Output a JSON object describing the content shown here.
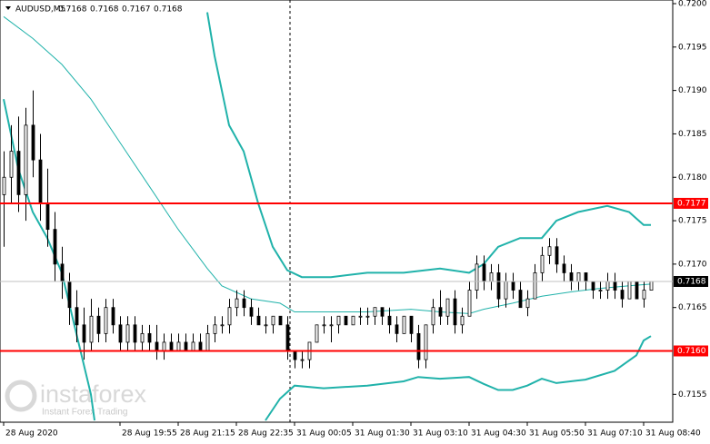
{
  "chart_data": {
    "type": "candlestick",
    "symbol": "AUDUSD,M5",
    "header_values": [
      0.7168,
      0.7168,
      0.7167,
      0.7168
    ],
    "xlim": [
      -0.5,
      92
    ],
    "ylim": [
      0.7152,
      0.72
    ],
    "yticks": [
      {
        "value": 0.72,
        "label": "0.7200"
      },
      {
        "value": 0.7195,
        "label": "0.7195"
      },
      {
        "value": 0.719,
        "label": "0.7190"
      },
      {
        "value": 0.7185,
        "label": "0.7185"
      },
      {
        "value": 0.718,
        "label": "0.7180"
      },
      {
        "value": 0.7175,
        "label": "0.7175"
      },
      {
        "value": 0.717,
        "label": "0.7170"
      },
      {
        "value": 0.7165,
        "label": "0.7165"
      },
      {
        "value": 0.7155,
        "label": "0.7155"
      }
    ],
    "xticks": [
      {
        "value": 0,
        "label": "28 Aug 2020"
      },
      {
        "value": 16,
        "label": "28 Aug 19:55"
      },
      {
        "value": 24,
        "label": "28 Aug 21:15"
      },
      {
        "value": 32,
        "label": "28 Aug 22:35"
      },
      {
        "value": 40,
        "label": "31 Aug 00:05"
      },
      {
        "value": 48,
        "label": "31 Aug 01:30"
      },
      {
        "value": 56,
        "label": "31 Aug 03:10"
      },
      {
        "value": 64,
        "label": "31 Aug 04:30"
      },
      {
        "value": 72,
        "label": "31 Aug 05:50"
      },
      {
        "value": 80,
        "label": "31 Aug 07:10"
      },
      {
        "value": 88,
        "label": "31 Aug 08:40"
      }
    ],
    "up_color": "#ffffff",
    "down_color": "#000000",
    "open": [
      0.7178,
      0.718,
      0.7183,
      0.7178,
      0.7186,
      0.7182,
      0.7177,
      0.7174,
      0.717,
      0.7168,
      0.7165,
      0.7163,
      0.7161,
      0.7164,
      0.7162,
      0.7165,
      0.7163,
      0.7161,
      0.7163,
      0.7161,
      0.7162,
      0.7161,
      0.716,
      0.7161,
      0.716,
      0.7161,
      0.716,
      0.7161,
      0.716,
      0.7162,
      0.7163,
      0.7163,
      0.7165,
      0.7166,
      0.7165,
      0.7164,
      0.7163,
      0.7163,
      0.7164,
      0.7163,
      0.716,
      0.7159,
      0.7159,
      0.7161,
      0.7163,
      0.7163,
      0.7163,
      0.7164,
      0.7163,
      0.7164,
      0.7164,
      0.7164,
      0.7165,
      0.7164,
      0.7163,
      0.7162,
      0.7164,
      0.7162,
      0.7159,
      0.7163,
      0.7165,
      0.7164,
      0.7166,
      0.7163,
      0.7164,
      0.7167,
      0.717,
      0.7168,
      0.7169,
      0.7166,
      0.7168,
      0.7167,
      0.7165,
      0.7166,
      0.7169,
      0.7171,
      0.7172,
      0.717,
      0.7169,
      0.7168,
      0.7169,
      0.7168,
      0.7167,
      0.7167,
      0.7168,
      0.7167,
      0.7166,
      0.7168,
      0.7166,
      0.7167
    ],
    "high": [
      0.7183,
      0.7186,
      0.7187,
      0.7188,
      0.719,
      0.7185,
      0.7181,
      0.7176,
      0.7172,
      0.7169,
      0.7167,
      0.7165,
      0.7166,
      0.7165,
      0.7166,
      0.7166,
      0.7164,
      0.7164,
      0.7164,
      0.7163,
      0.7163,
      0.7163,
      0.7162,
      0.7162,
      0.7162,
      0.7162,
      0.7162,
      0.7162,
      0.7163,
      0.7164,
      0.7164,
      0.7166,
      0.7167,
      0.7167,
      0.7166,
      0.7165,
      0.7164,
      0.7164,
      0.7164,
      0.7164,
      0.716,
      0.716,
      0.7161,
      0.7163,
      0.7164,
      0.7164,
      0.7164,
      0.7164,
      0.7164,
      0.7165,
      0.7165,
      0.7165,
      0.7165,
      0.7165,
      0.7164,
      0.7164,
      0.7164,
      0.7163,
      0.7163,
      0.7166,
      0.7167,
      0.7166,
      0.7167,
      0.7165,
      0.7168,
      0.7171,
      0.7171,
      0.717,
      0.717,
      0.7169,
      0.7169,
      0.7168,
      0.7167,
      0.717,
      0.7172,
      0.7173,
      0.7173,
      0.7171,
      0.717,
      0.7169,
      0.7169,
      0.7168,
      0.7168,
      0.7169,
      0.7169,
      0.7168,
      0.7168,
      0.7168,
      0.7168,
      0.7168
    ],
    "low": [
      0.7172,
      0.7177,
      0.7176,
      0.7175,
      0.718,
      0.7175,
      0.7172,
      0.7168,
      0.7166,
      0.7163,
      0.7161,
      0.7159,
      0.716,
      0.7161,
      0.7161,
      0.7162,
      0.716,
      0.716,
      0.716,
      0.716,
      0.716,
      0.7159,
      0.7159,
      0.716,
      0.716,
      0.716,
      0.716,
      0.716,
      0.716,
      0.7161,
      0.7162,
      0.7162,
      0.7164,
      0.7164,
      0.7163,
      0.7163,
      0.7162,
      0.7162,
      0.7163,
      0.7159,
      0.7158,
      0.7158,
      0.7158,
      0.7161,
      0.7162,
      0.7161,
      0.7162,
      0.7163,
      0.7163,
      0.7163,
      0.7163,
      0.7163,
      0.7163,
      0.7162,
      0.7161,
      0.7162,
      0.7161,
      0.7158,
      0.7158,
      0.7162,
      0.7163,
      0.7163,
      0.7162,
      0.7162,
      0.7164,
      0.7166,
      0.7167,
      0.7167,
      0.7165,
      0.7165,
      0.7166,
      0.7165,
      0.7164,
      0.7166,
      0.7168,
      0.717,
      0.7169,
      0.7168,
      0.7167,
      0.7167,
      0.7167,
      0.7166,
      0.7166,
      0.7166,
      0.7166,
      0.7165,
      0.7166,
      0.7166,
      0.7165,
      0.7167
    ],
    "close": [
      0.718,
      0.7183,
      0.7178,
      0.7186,
      0.7182,
      0.7177,
      0.7174,
      0.717,
      0.7168,
      0.7165,
      0.7163,
      0.7161,
      0.7164,
      0.7162,
      0.7165,
      0.7163,
      0.7161,
      0.7163,
      0.7161,
      0.7162,
      0.7161,
      0.716,
      0.7161,
      0.716,
      0.7161,
      0.716,
      0.7161,
      0.716,
      0.7162,
      0.7163,
      0.7163,
      0.7165,
      0.7166,
      0.7165,
      0.7164,
      0.7163,
      0.7163,
      0.7164,
      0.7163,
      0.716,
      0.7159,
      0.7159,
      0.7161,
      0.7163,
      0.7163,
      0.7163,
      0.7164,
      0.7163,
      0.7164,
      0.7164,
      0.7164,
      0.7165,
      0.7164,
      0.7163,
      0.7162,
      0.7164,
      0.7162,
      0.7159,
      0.7163,
      0.7165,
      0.7164,
      0.7166,
      0.7163,
      0.7164,
      0.7167,
      0.717,
      0.7168,
      0.7169,
      0.7166,
      0.7168,
      0.7167,
      0.7165,
      0.7166,
      0.7169,
      0.7171,
      0.7172,
      0.717,
      0.7169,
      0.7168,
      0.7169,
      0.7168,
      0.7167,
      0.7167,
      0.7168,
      0.7167,
      0.7166,
      0.7168,
      0.7166,
      0.7167,
      0.7168
    ],
    "indicators": [
      {
        "color": "#20b2aa",
        "x": [
          28,
          29,
          30,
          31,
          33,
          35,
          37,
          39,
          41,
          45,
          50,
          55,
          60,
          64,
          66,
          68,
          71,
          74,
          76,
          79,
          83,
          86,
          88,
          89
        ],
        "values": [
          0.7199,
          0.7194,
          0.719,
          0.7186,
          0.7183,
          0.7177,
          0.7172,
          0.71693,
          0.71685,
          0.71685,
          0.7169,
          0.7169,
          0.71695,
          0.7169,
          0.717,
          0.7172,
          0.7173,
          0.7173,
          0.7175,
          0.7176,
          0.71767,
          0.7176,
          0.71745,
          0.71745
        ]
      },
      {
        "color": "#20b2aa",
        "x": [
          0,
          2,
          4,
          6,
          8,
          10,
          12,
          12.5,
          null,
          36,
          38,
          40,
          44,
          50,
          55,
          57,
          60,
          64,
          66,
          68,
          70,
          72,
          74,
          76,
          80,
          84,
          87,
          88,
          89
        ],
        "values": [
          0.7189,
          0.7181,
          0.7176,
          0.7173,
          0.7169,
          0.7162,
          0.7155,
          0.7152,
          null,
          0.7152,
          0.71545,
          0.7156,
          0.71557,
          0.7156,
          0.71565,
          0.7157,
          0.71568,
          0.7157,
          0.71562,
          0.71555,
          0.71555,
          0.7156,
          0.71568,
          0.71563,
          0.71567,
          0.71577,
          0.71595,
          0.71612,
          0.71617
        ]
      },
      {
        "color": "#20b2aa",
        "x": [
          0,
          4,
          8,
          12,
          16,
          20,
          24,
          28,
          30,
          34,
          38,
          40,
          44,
          50,
          56,
          60,
          64,
          66,
          70,
          74,
          78,
          82,
          86,
          89
        ],
        "values": [
          0.71985,
          0.7196,
          0.7193,
          0.7189,
          0.7184,
          0.7179,
          0.7174,
          0.71695,
          0.71675,
          0.7166,
          0.71655,
          0.71645,
          0.71645,
          0.71645,
          0.71648,
          0.71645,
          0.71643,
          0.71648,
          0.71655,
          0.71663,
          0.71668,
          0.71672,
          0.71675,
          0.71677
        ]
      }
    ],
    "hlines": [
      {
        "value": 0.7177,
        "label": "0.7177",
        "color": "#ff0000"
      },
      {
        "value": 0.716,
        "label": "0.7160",
        "color": "#ff0000"
      }
    ],
    "last_price": {
      "value": 0.7168,
      "label": "0.7168"
    },
    "watermark": {
      "brand": "instaforex",
      "tagline": "Instant Forex Trading"
    }
  }
}
